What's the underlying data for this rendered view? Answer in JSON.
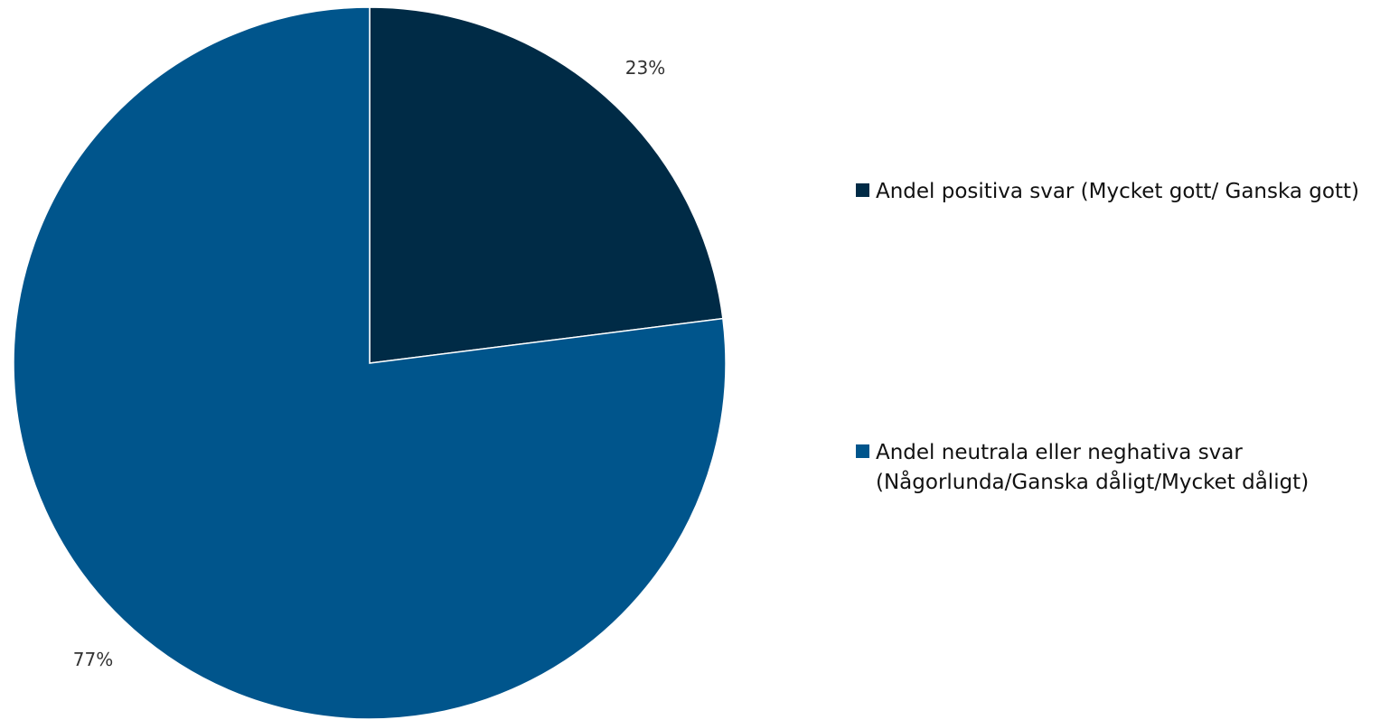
{
  "chart_data": {
    "type": "pie",
    "slices": [
      {
        "label_lines": [
          "Andel positiva svar (Mycket gott/ Ganska gott)"
        ],
        "value": 23,
        "value_label": "23%",
        "color": "#002B46"
      },
      {
        "label_lines": [
          "Andel neutrala eller neghativa svar",
          "(Någorlunda/Ganska dåligt/Mycket dåligt)"
        ],
        "value": 77,
        "value_label": "77%",
        "color": "#00558C"
      }
    ],
    "start_angle_deg": 0,
    "direction": "clockwise",
    "legend_position": "right"
  }
}
